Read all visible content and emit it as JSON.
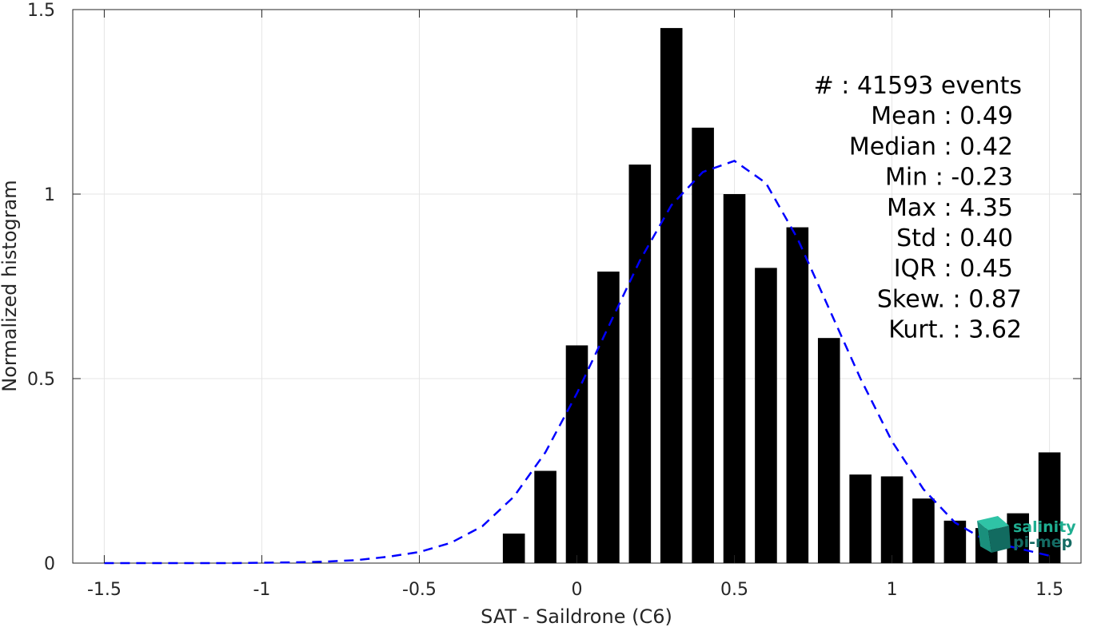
{
  "chart_data": {
    "type": "bar",
    "xlabel": "SAT - Saildrone (C6)",
    "ylabel": "Normalized histogram",
    "xlim": [
      -1.6,
      1.6
    ],
    "ylim": [
      0,
      1.5
    ],
    "grid": true,
    "xticks": [
      -1.5,
      -1,
      -0.5,
      0,
      0.5,
      1,
      1.5
    ],
    "xtick_labels": [
      "-1.5",
      "-1",
      "-0.5",
      "0",
      "0.5",
      "1",
      "1.5"
    ],
    "yticks": [
      0,
      0.5,
      1,
      1.5
    ],
    "ytick_labels": [
      "0",
      "0.5",
      "1",
      "1.5"
    ],
    "bar_width": 0.07,
    "histogram": {
      "name": "",
      "x": [
        -0.2,
        -0.1,
        0.0,
        0.1,
        0.2,
        0.3,
        0.4,
        0.5,
        0.6,
        0.7,
        0.8,
        0.9,
        1.0,
        1.1,
        1.2,
        1.3,
        1.4,
        1.5
      ],
      "values": [
        0.08,
        0.25,
        0.59,
        0.79,
        1.08,
        1.45,
        1.18,
        1.0,
        0.8,
        0.91,
        0.61,
        0.24,
        0.235,
        0.175,
        0.115,
        0.095,
        0.135,
        0.3
      ]
    },
    "fit": {
      "name": "",
      "style": "dashed",
      "color": "#0000ff",
      "x": [
        -1.5,
        -1.4,
        -1.3,
        -1.2,
        -1.1,
        -1.0,
        -0.9,
        -0.8,
        -0.7,
        -0.6,
        -0.5,
        -0.4,
        -0.3,
        -0.2,
        -0.1,
        0.0,
        0.1,
        0.2,
        0.3,
        0.4,
        0.5,
        0.6,
        0.7,
        0.8,
        0.9,
        1.0,
        1.1,
        1.2,
        1.3,
        1.4,
        1.5
      ],
      "values": [
        0.0,
        0.0,
        0.0,
        0.0,
        0.0,
        0.001,
        0.002,
        0.004,
        0.008,
        0.017,
        0.03,
        0.055,
        0.1,
        0.18,
        0.3,
        0.46,
        0.64,
        0.82,
        0.97,
        1.06,
        1.09,
        1.03,
        0.88,
        0.69,
        0.5,
        0.33,
        0.2,
        0.11,
        0.06,
        0.04,
        0.02
      ]
    },
    "stats": [
      {
        "label": "#  : 41593 events"
      },
      {
        "label": "Mean : 0.49"
      },
      {
        "label": "Median : 0.42"
      },
      {
        "label": "Min : -0.23"
      },
      {
        "label": "Max : 4.35"
      },
      {
        "label": "Std : 0.40"
      },
      {
        "label": "IQR : 0.45"
      },
      {
        "label": "Skew. : 0.87"
      },
      {
        "label": "Kurt. : 3.62"
      }
    ],
    "colors": {
      "bars": "#000000",
      "grid": "#e5e5e5",
      "axis": "#262626"
    }
  },
  "logo": {
    "line1": "salinity",
    "line2": "pi-mep",
    "color1": "#1fae91",
    "color2": "#146b63"
  }
}
